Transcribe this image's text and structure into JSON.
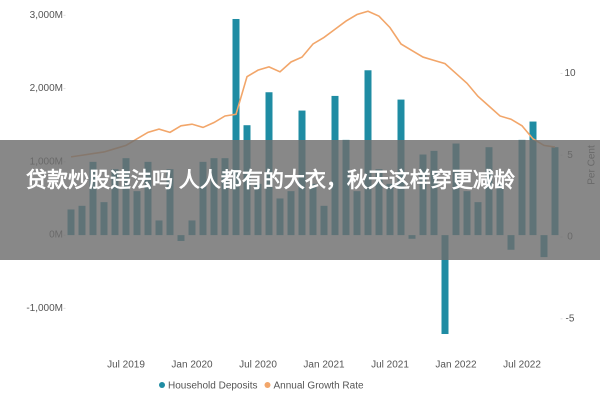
{
  "chart_data": {
    "type": "bar",
    "categories": [
      null,
      null,
      null,
      null,
      null,
      "Jul 2019",
      null,
      null,
      null,
      null,
      null,
      "Jan 2020",
      null,
      null,
      null,
      null,
      null,
      "Jul 2020",
      null,
      null,
      null,
      null,
      null,
      "Jan 2021",
      null,
      null,
      null,
      null,
      null,
      "Jul 2021",
      null,
      null,
      null,
      null,
      null,
      "Jan 2022",
      null,
      null,
      null,
      null,
      null,
      "Jul 2022",
      null,
      null,
      null
    ],
    "series": [
      {
        "name": "Household Deposits",
        "color": "#1f8ca3",
        "values": [
          350,
          400,
          1000,
          450,
          900,
          1050,
          600,
          1000,
          200,
          900,
          -80,
          200,
          1000,
          1050,
          1050,
          2950,
          1500,
          700,
          1950,
          500,
          600,
          1700,
          700,
          400,
          1900,
          1300,
          600,
          2250,
          900,
          700,
          1850,
          -50,
          1100,
          1150,
          -1350,
          1250,
          600,
          450,
          1200,
          700,
          -200,
          1300,
          1550,
          -300,
          1200
        ]
      },
      {
        "name": "Annual Growth Rate",
        "color": "#f2a66a",
        "type": "line",
        "axis": "y2",
        "values": [
          4.9,
          5.0,
          5.1,
          5.2,
          5.4,
          5.6,
          6.0,
          6.4,
          6.6,
          6.4,
          6.8,
          6.9,
          6.7,
          7.0,
          7.4,
          7.5,
          9.8,
          10.2,
          10.4,
          10.1,
          10.7,
          11.0,
          11.8,
          12.2,
          12.7,
          13.2,
          13.6,
          13.8,
          13.5,
          12.8,
          11.8,
          11.4,
          11.0,
          10.8,
          10.6,
          10.0,
          9.4,
          8.6,
          8.0,
          7.4,
          7.2,
          6.8,
          6.0,
          5.6,
          5.5
        ]
      }
    ],
    "ylim": [
      -1500,
      3100
    ],
    "yticks": [
      {
        "value": -1000,
        "label": "-1,000M"
      },
      {
        "value": 0,
        "label": "0M"
      },
      {
        "value": 1000,
        "label": "1,000M"
      },
      {
        "value": 2000,
        "label": "2,000M"
      },
      {
        "value": 3000,
        "label": "3,000M"
      }
    ],
    "y2lim": [
      -6.6,
      14.0
    ],
    "y2ticks": [
      -5,
      0,
      5,
      10
    ],
    "y2label": "Per Cent",
    "legend": "bottom"
  },
  "banner": {
    "text": "贷款炒股违法吗 人人都有的大衣，秋天这样穿更减龄"
  }
}
